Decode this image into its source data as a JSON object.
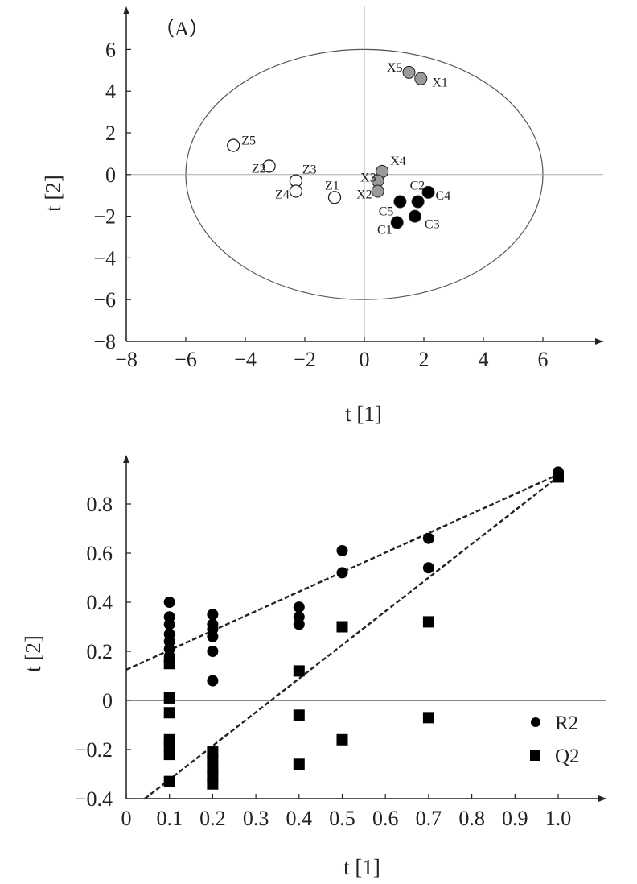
{
  "chart_data": [
    {
      "type": "scatter",
      "panel_label": "（A）",
      "xlabel": "t [1]",
      "ylabel": "t [2]",
      "xlim": [
        -8,
        8
      ],
      "ylim": [
        -8,
        8
      ],
      "x_ticks": [
        "−8",
        "−6",
        "−4",
        "−2",
        "0",
        "2",
        "4",
        "6"
      ],
      "y_ticks": [
        "−8",
        "−6",
        "−4",
        "−2",
        "0",
        "2",
        "4",
        "6"
      ],
      "confidence_ellipse": {
        "center": [
          0,
          0
        ],
        "semi_axis_x": 6,
        "semi_axis_y": 6
      },
      "reference_lines": {
        "x": 0,
        "y": 0
      },
      "series": [
        {
          "group": "Z",
          "marker": "open-circle",
          "color": "#ffffff",
          "points": [
            {
              "label": "Z5",
              "x": -4.4,
              "y": 1.4
            },
            {
              "label": "Z2",
              "x": -3.2,
              "y": 0.4
            },
            {
              "label": "Z3",
              "x": -2.3,
              "y": -0.3
            },
            {
              "label": "Z4",
              "x": -2.3,
              "y": -0.8
            },
            {
              "label": "Z1",
              "x": -1.0,
              "y": -1.1
            }
          ]
        },
        {
          "group": "X",
          "marker": "gray-circle",
          "color": "#9a9a9a",
          "points": [
            {
              "label": "X5",
              "x": 1.5,
              "y": 4.9
            },
            {
              "label": "X1",
              "x": 1.9,
              "y": 4.6
            },
            {
              "label": "X4",
              "x": 0.6,
              "y": 0.15
            },
            {
              "label": "X3",
              "x": 0.45,
              "y": -0.3
            },
            {
              "label": "X2",
              "x": 0.45,
              "y": -0.8
            }
          ]
        },
        {
          "group": "C",
          "marker": "filled-circle",
          "color": "#000000",
          "points": [
            {
              "label": "C5",
              "x": 1.2,
              "y": -1.3
            },
            {
              "label": "C2",
              "x": 1.8,
              "y": -1.3
            },
            {
              "label": "C4",
              "x": 2.15,
              "y": -0.85
            },
            {
              "label": "C3",
              "x": 1.7,
              "y": -2.0
            },
            {
              "label": "C1",
              "x": 1.1,
              "y": -2.3
            }
          ]
        }
      ]
    },
    {
      "type": "scatter",
      "xlabel": "t [1]",
      "ylabel": "t [2]",
      "xlim": [
        0,
        1.1
      ],
      "ylim": [
        -0.4,
        1.0
      ],
      "x_ticks": [
        "0",
        "0.1",
        "0.2",
        "0.3",
        "0.4",
        "0.5",
        "0.6",
        "0.7",
        "0.8",
        "0.9",
        "1.0"
      ],
      "y_ticks": [
        "−0.4",
        "−0.2",
        "0",
        "0.2",
        "0.4",
        "0.6",
        "0.8"
      ],
      "reference_lines": {
        "y": 0
      },
      "legend": {
        "placement": "right",
        "entries": [
          "R2",
          "Q2"
        ]
      },
      "series": [
        {
          "name": "R2",
          "marker": "circle",
          "color": "#000000",
          "x": [
            0.1,
            0.1,
            0.1,
            0.1,
            0.1,
            0.1,
            0.1,
            0.1,
            0.2,
            0.2,
            0.2,
            0.2,
            0.2,
            0.2,
            0.4,
            0.4,
            0.4,
            0.5,
            0.5,
            0.7,
            0.7,
            1.0
          ],
          "y": [
            0.4,
            0.34,
            0.31,
            0.27,
            0.24,
            0.21,
            0.18,
            0.16,
            0.35,
            0.31,
            0.29,
            0.26,
            0.2,
            0.08,
            0.38,
            0.34,
            0.31,
            0.61,
            0.52,
            0.66,
            0.54,
            0.93
          ]
        },
        {
          "name": "Q2",
          "marker": "square",
          "color": "#000000",
          "x": [
            0.1,
            0.1,
            0.1,
            0.1,
            0.1,
            0.1,
            0.1,
            0.2,
            0.2,
            0.2,
            0.2,
            0.2,
            0.4,
            0.4,
            0.4,
            0.5,
            0.5,
            0.7,
            0.7,
            1.0
          ],
          "y": [
            0.15,
            0.01,
            -0.05,
            -0.16,
            -0.19,
            -0.22,
            -0.33,
            -0.21,
            -0.24,
            -0.28,
            -0.31,
            -0.34,
            0.12,
            -0.06,
            -0.26,
            0.3,
            -0.16,
            0.32,
            -0.07,
            0.91
          ]
        }
      ],
      "regression_lines": [
        {
          "series": "R2",
          "style": "dashed",
          "intercept": 0.125,
          "slope": 0.795
        },
        {
          "series": "Q2",
          "style": "dashed",
          "intercept": -0.459,
          "slope": 1.37
        }
      ]
    }
  ]
}
